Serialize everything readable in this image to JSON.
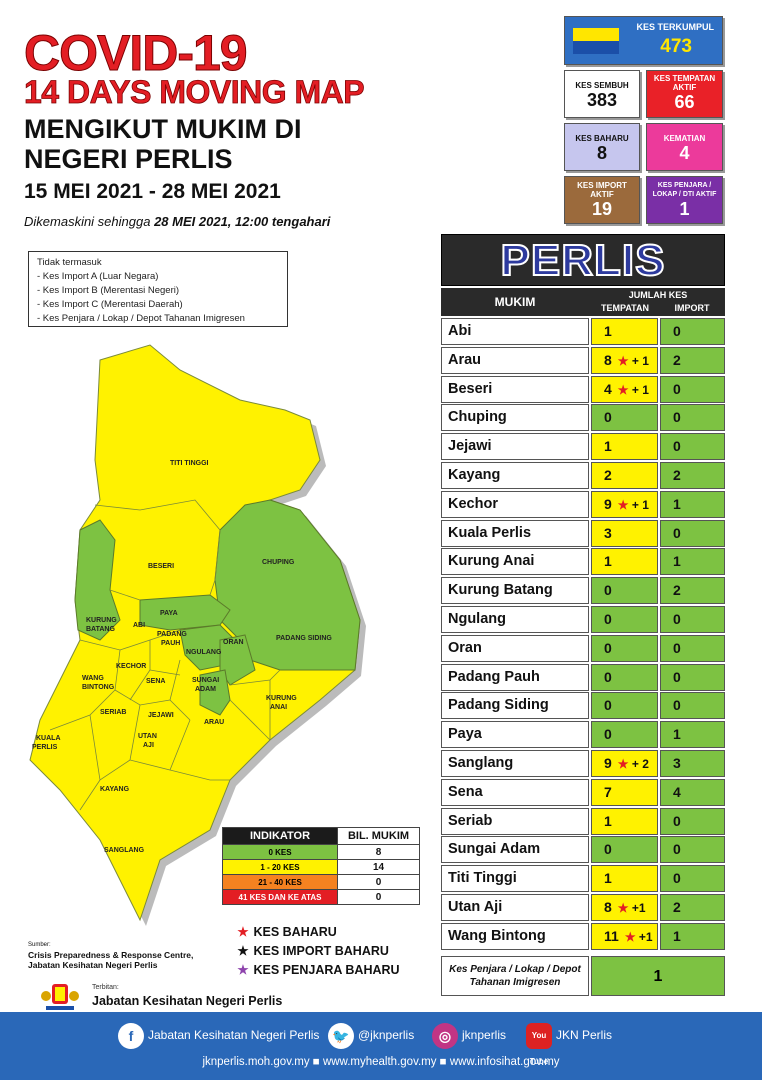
{
  "header": {
    "title": "COVID-19",
    "subtitle": "14 DAYS MOVING MAP",
    "heading_line1": "MENGIKUT MUKIM DI",
    "heading_line2": "NEGERI PERLIS",
    "date_range": "15 MEI 2021 - 28 MEI 2021",
    "updated_prefix": "Dikemaskini sehingga ",
    "updated_value": "28 MEI 2021, 12:00 tengahari"
  },
  "stats": {
    "terkumpul": {
      "label": "KES TERKUMPUL",
      "value": "473"
    },
    "sembuh": {
      "label": "KES SEMBUH",
      "value": "383"
    },
    "tempatan_aktif": {
      "label": "KES TEMPATAN AKTIF",
      "value": "66"
    },
    "baharu": {
      "label": "KES BAHARU",
      "value": "8"
    },
    "kematian": {
      "label": "KEMATIAN",
      "value": "4"
    },
    "import_aktif": {
      "label": "KES IMPORT AKTIF",
      "value": "19"
    },
    "penjara_aktif": {
      "label": "KES PENJARA / LOKAP / DTI AKTIF",
      "value": "1"
    }
  },
  "notes": {
    "heading": "Tidak termasuk",
    "items": [
      "- Kes Import A (Luar Negara)",
      "- Kes Import B (Merentasi Negeri)",
      "- Kes Import C (Merentasi Daerah)",
      "- Kes Penjara / Lokap / Depot Tahanan Imigresen"
    ]
  },
  "map_labels": [
    "TITI TINGGI",
    "BESERI",
    "CHUPING",
    "PAYA",
    "KURUNG",
    "BATANG",
    "ABI",
    "PADANG",
    "PAUH",
    "NGULANG",
    "ORAN",
    "PADANG SIDING",
    "KECHOR",
    "WANG",
    "BINTONG",
    "SENA",
    "SUNGAI",
    "ADAM",
    "SERIAB",
    "JEJAWI",
    "ARAU",
    "KURUNG",
    "ANAI",
    "KUALA",
    "PERLIS",
    "UTAN",
    "AJI",
    "KAYANG",
    "SANGLANG"
  ],
  "indicator": {
    "header": "INDIKATOR",
    "header2": "BIL. MUKIM",
    "rows": [
      {
        "label": "0 KES",
        "count": "8",
        "color": "#7dc242"
      },
      {
        "label": "1 - 20 KES",
        "count": "14",
        "color": "#fff200"
      },
      {
        "label": "21 - 40 KES",
        "count": "0",
        "color": "#f58220"
      },
      {
        "label": "41 KES DAN KE ATAS",
        "count": "0",
        "color": "#e31e24"
      }
    ]
  },
  "legend": [
    {
      "label": "KES BAHARU",
      "color": "#e31e24",
      "icon": "star-icon"
    },
    {
      "label": "KES IMPORT BAHARU",
      "color": "#111111",
      "icon": "star-icon"
    },
    {
      "label": "KES PENJARA BAHARU",
      "color": "#8e44ad",
      "icon": "star-icon"
    }
  ],
  "source": {
    "caption": "Sumber:",
    "line1": "Crisis Preparedness & Response Centre,",
    "line2": "Jabatan Kesihatan Negeri Perlis"
  },
  "publisher": {
    "caption": "Terbitan:",
    "name": "Jabatan Kesihatan Negeri Perlis"
  },
  "table": {
    "title": "PERLIS",
    "col_mukim": "MUKIM",
    "col_group": "JUMLAH KES",
    "col_tempatan": "TEMPATAN",
    "col_import": "IMPORT",
    "rows": [
      {
        "name": "Abi",
        "tempatan": "1",
        "new": "",
        "import": "0",
        "color": "y"
      },
      {
        "name": "Arau",
        "tempatan": "8",
        "new": "+ 1",
        "import": "2",
        "color": "y"
      },
      {
        "name": "Beseri",
        "tempatan": "4",
        "new": "+ 1",
        "import": "0",
        "color": "y"
      },
      {
        "name": "Chuping",
        "tempatan": "0",
        "new": "",
        "import": "0",
        "color": "g"
      },
      {
        "name": "Jejawi",
        "tempatan": "1",
        "new": "",
        "import": "0",
        "color": "y"
      },
      {
        "name": "Kayang",
        "tempatan": "2",
        "new": "",
        "import": "2",
        "color": "y"
      },
      {
        "name": "Kechor",
        "tempatan": "9",
        "new": "+ 1",
        "import": "1",
        "color": "y"
      },
      {
        "name": "Kuala Perlis",
        "tempatan": "3",
        "new": "",
        "import": "0",
        "color": "y"
      },
      {
        "name": "Kurung Anai",
        "tempatan": "1",
        "new": "",
        "import": "1",
        "color": "y"
      },
      {
        "name": "Kurung Batang",
        "tempatan": "0",
        "new": "",
        "import": "2",
        "color": "g"
      },
      {
        "name": "Ngulang",
        "tempatan": "0",
        "new": "",
        "import": "0",
        "color": "g"
      },
      {
        "name": "Oran",
        "tempatan": "0",
        "new": "",
        "import": "0",
        "color": "g"
      },
      {
        "name": "Padang Pauh",
        "tempatan": "0",
        "new": "",
        "import": "0",
        "color": "g"
      },
      {
        "name": "Padang Siding",
        "tempatan": "0",
        "new": "",
        "import": "0",
        "color": "g"
      },
      {
        "name": "Paya",
        "tempatan": "0",
        "new": "",
        "import": "1",
        "color": "g"
      },
      {
        "name": "Sanglang",
        "tempatan": "9",
        "new": "+ 2",
        "import": "3",
        "color": "y"
      },
      {
        "name": "Sena",
        "tempatan": "7",
        "new": "",
        "import": "4",
        "color": "y"
      },
      {
        "name": "Seriab",
        "tempatan": "1",
        "new": "",
        "import": "0",
        "color": "y"
      },
      {
        "name": "Sungai Adam",
        "tempatan": "0",
        "new": "",
        "import": "0",
        "color": "g"
      },
      {
        "name": "Titi Tinggi",
        "tempatan": "1",
        "new": "",
        "import": "0",
        "color": "y"
      },
      {
        "name": "Utan Aji",
        "tempatan": "8",
        "new": "+1",
        "import": "2",
        "color": "y"
      },
      {
        "name": "Wang Bintong",
        "tempatan": "11",
        "new": "+1",
        "import": "1",
        "color": "y"
      }
    ],
    "penjara_label": "Kes Penjara / Lokap / Depot Tahanan Imigresen",
    "penjara_value": "1"
  },
  "footer": {
    "facebook": "Jabatan Kesihatan Negeri Perlis",
    "twitter": "@jknperlis",
    "instagram": "jknperlis",
    "youtube": "JKN Perlis",
    "youtube_icon_text": "You Tube",
    "urls": "jknperlis.moh.gov.my  ■ www.myhealth.gov.my  ■ www.infosihat.gov.my"
  },
  "colors": {
    "green": "#7dc242",
    "yellow": "#fff200",
    "red": "#e31e24",
    "blue": "#2a68b8"
  }
}
